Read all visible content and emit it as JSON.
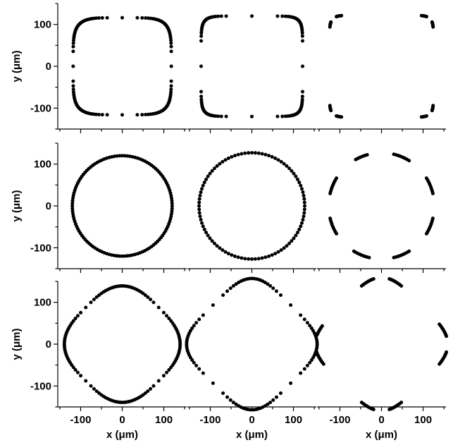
{
  "chart_data": {
    "type": "scatter",
    "layout": "3x3 grid of panels, shared axes",
    "xlabel": "x (μm)",
    "ylabel": "y (μm)",
    "xlim": [
      -155,
      155
    ],
    "ylim": [
      -150,
      150
    ],
    "x_ticks": [
      -100,
      0,
      100
    ],
    "y_ticks": [
      -100,
      0,
      100
    ],
    "x_tick_labels": [
      "-100",
      "0",
      "100"
    ],
    "y_tick_labels": [
      "100",
      "0",
      "-100"
    ],
    "marker_color": "#000000",
    "grid": false,
    "legend": "none",
    "panels": [
      {
        "row": 0,
        "col": 0,
        "shape": "rounded square, continuous",
        "a": 118,
        "b": 116,
        "p": 5,
        "rotate_deg": 0,
        "count": 120,
        "arc_half_width_deg": null
      },
      {
        "row": 0,
        "col": 1,
        "shape": "rounded square, sparse dotted",
        "a": 122,
        "b": 120,
        "p": 8,
        "rotate_deg": 0,
        "count": 96,
        "arc_half_width_deg": null
      },
      {
        "row": 0,
        "col": 2,
        "shape": "8 short arcs of rounded square",
        "a": 125,
        "b": 122,
        "p": 10,
        "rotate_deg": 0,
        "count": 160,
        "arc_half_width_deg": 7
      },
      {
        "row": 1,
        "col": 0,
        "shape": "circle, continuous",
        "a": 120,
        "b": 120,
        "p": 2,
        "rotate_deg": 0,
        "count": 120,
        "arc_half_width_deg": null
      },
      {
        "row": 1,
        "col": 1,
        "shape": "circle, sparse dotted",
        "a": 127,
        "b": 127,
        "p": 2,
        "rotate_deg": 0,
        "count": 96,
        "arc_half_width_deg": null
      },
      {
        "row": 1,
        "col": 2,
        "shape": "8 short arcs of circle",
        "a": 127,
        "b": 127,
        "p": 2,
        "rotate_deg": 0,
        "count": 160,
        "arc_half_width_deg": 9
      },
      {
        "row": 2,
        "col": 0,
        "shape": "rounded diamond, continuous",
        "a": 124,
        "b": 124,
        "p": 3,
        "rotate_deg": 45,
        "count": 120,
        "arc_half_width_deg": null
      },
      {
        "row": 2,
        "col": 1,
        "shape": "rounded diamond, sparse dotted",
        "a": 132,
        "b": 132,
        "p": 4,
        "rotate_deg": 45,
        "count": 96,
        "arc_half_width_deg": null
      },
      {
        "row": 2,
        "col": 2,
        "shape": "8 short arcs of rounded diamond",
        "a": 134,
        "b": 134,
        "p": 4,
        "rotate_deg": 45,
        "count": 160,
        "arc_half_width_deg": 9
      }
    ]
  }
}
